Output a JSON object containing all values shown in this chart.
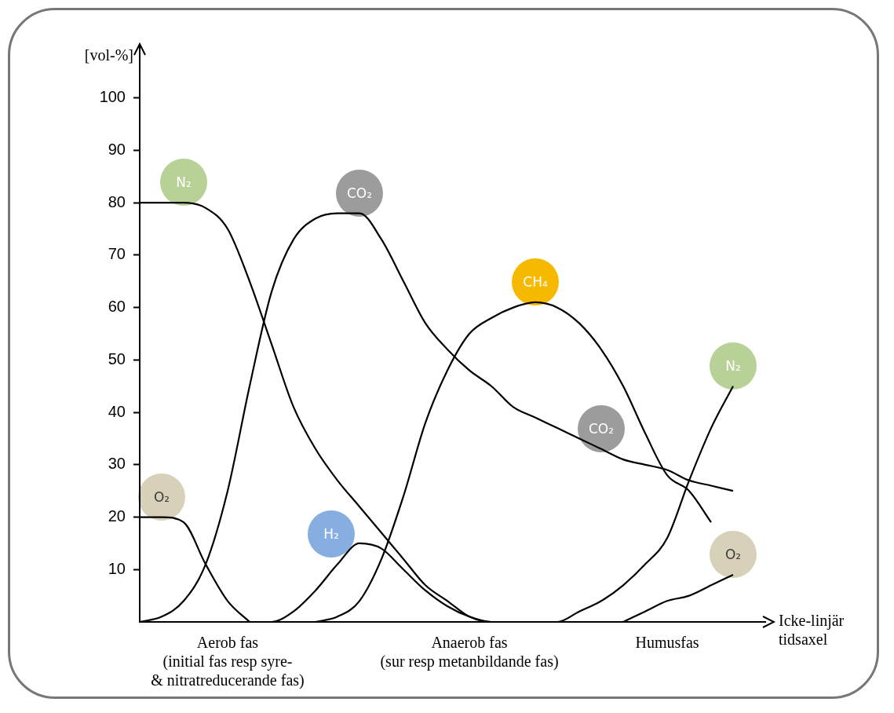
{
  "chart_data": {
    "type": "line",
    "xlabel": "Icke-linjär tidsaxel",
    "ylabel": "[vol-%]",
    "categories": [
      null,
      null,
      null,
      null,
      "Aerob fas\n(initial fas resp syre-\n& nitratreducerande fas)",
      null,
      null,
      null,
      null,
      null,
      null,
      null,
      null,
      null,
      null,
      "Anaerob fas\n(sur resp metanbildande fas)",
      null,
      null,
      null,
      null,
      null,
      null,
      null,
      null,
      "Humusfas",
      null,
      null,
      null,
      null
    ],
    "ylim": [
      0,
      110
    ],
    "yticks": [
      10,
      20,
      30,
      40,
      50,
      60,
      70,
      80,
      90,
      100
    ],
    "legend": false,
    "marker": "none",
    "series": [
      {
        "name": "N₂",
        "color": "#000000",
        "values": [
          80,
          80,
          80,
          79,
          75,
          65,
          53,
          41,
          33,
          27,
          22,
          17,
          12,
          7,
          4,
          1,
          0,
          0,
          0,
          null,
          null,
          null,
          null,
          null,
          null,
          null,
          null,
          null,
          null
        ]
      },
      {
        "name": "CO₂",
        "color": "#000000",
        "values": [
          0,
          1,
          4,
          11,
          25,
          45,
          63,
          73,
          77,
          78,
          78,
          73,
          65,
          57,
          52,
          48,
          45,
          41,
          39,
          37,
          35,
          33,
          null,
          null,
          null,
          null,
          null,
          null,
          null
        ]
      },
      {
        "name": "O₂",
        "color": "#000000",
        "values": [
          20,
          20,
          19,
          11,
          4,
          0,
          null,
          null,
          null,
          null,
          null,
          null,
          null,
          null,
          null,
          null,
          null,
          null,
          null,
          null,
          null,
          null,
          null,
          null,
          null,
          null,
          null,
          null,
          null
        ]
      },
      {
        "name": "H₂",
        "color": "#000000",
        "values": [
          null,
          null,
          null,
          null,
          null,
          0,
          0,
          2,
          6,
          11,
          15,
          14,
          10,
          6,
          3,
          1,
          0,
          0,
          null,
          null,
          null,
          null,
          null,
          null,
          null,
          null,
          null,
          null,
          null
        ]
      },
      {
        "name": "CH₄",
        "color": "#000000",
        "values": [
          null,
          null,
          null,
          null,
          null,
          null,
          null,
          null,
          0,
          1,
          4,
          12,
          24,
          38,
          48,
          55,
          58,
          60,
          61,
          60,
          57,
          52,
          45,
          36,
          28,
          25,
          19,
          null,
          null
        ]
      },
      {
        "name": "CO₂",
        "color": "#000000",
        "values": [
          null,
          null,
          null,
          null,
          null,
          null,
          null,
          null,
          null,
          null,
          null,
          null,
          null,
          null,
          null,
          null,
          null,
          null,
          null,
          null,
          null,
          33,
          31,
          30,
          29,
          27,
          26,
          25,
          null
        ]
      },
      {
        "name": "N₂",
        "color": "#000000",
        "values": [
          null,
          null,
          null,
          null,
          null,
          null,
          null,
          null,
          null,
          null,
          null,
          null,
          null,
          null,
          null,
          null,
          null,
          null,
          0,
          0,
          2,
          4,
          7,
          11,
          16,
          27,
          37,
          45,
          null
        ]
      },
      {
        "name": "O₂",
        "color": "#000000",
        "values": [
          null,
          null,
          null,
          null,
          null,
          null,
          null,
          null,
          null,
          null,
          null,
          null,
          null,
          null,
          null,
          null,
          null,
          null,
          null,
          null,
          null,
          null,
          0,
          2,
          4,
          5,
          7,
          9,
          null
        ]
      }
    ]
  }
}
